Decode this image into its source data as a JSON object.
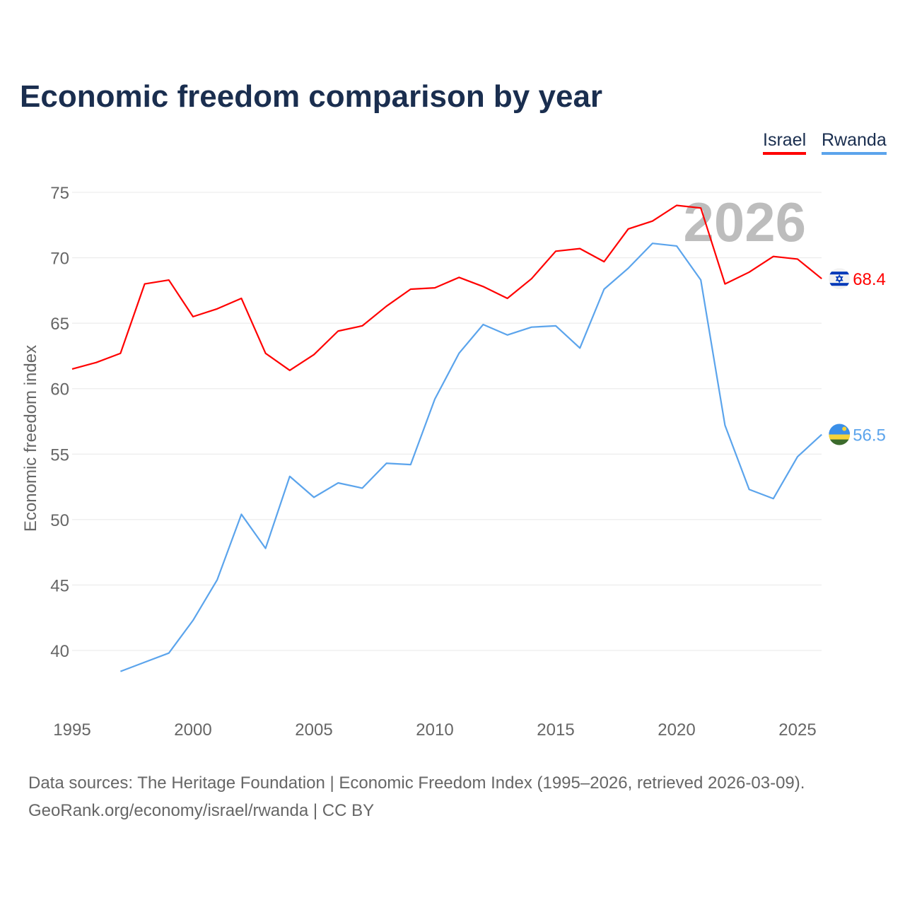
{
  "title": "Economic freedom comparison by year",
  "legend": [
    {
      "label": "Israel",
      "color": "#ff0000"
    },
    {
      "label": "Rwanda",
      "color": "#5ba4ec"
    }
  ],
  "source_line1": "Data sources: The Heritage Foundation | Economic Freedom Index (1995–2026, retrieved 2026-03-09).",
  "source_line2": "GeoRank.org/economy/israel/rwanda | CC BY",
  "chart_data": {
    "type": "line",
    "title": "Economic freedom comparison by year",
    "ylabel": "Economic freedom index",
    "xlabel": "",
    "xlim": [
      1995,
      2026
    ],
    "ylim": [
      35,
      75
    ],
    "yticks": [
      40,
      45,
      50,
      55,
      60,
      65,
      70,
      75
    ],
    "xticks": [
      1995,
      2000,
      2005,
      2010,
      2015,
      2020,
      2025
    ],
    "grid": true,
    "legend_position": "top-right",
    "year_watermark": "2026",
    "series": [
      {
        "name": "Israel",
        "color": "#ff0000",
        "end_label": "68.4",
        "flag": "israel-flag",
        "x": [
          1995,
          1996,
          1997,
          1998,
          1999,
          2000,
          2001,
          2002,
          2003,
          2004,
          2005,
          2006,
          2007,
          2008,
          2009,
          2010,
          2011,
          2012,
          2013,
          2014,
          2015,
          2016,
          2017,
          2018,
          2019,
          2020,
          2021,
          2022,
          2023,
          2024,
          2025,
          2026
        ],
        "values": [
          61.5,
          62.0,
          62.7,
          68.0,
          68.3,
          65.5,
          66.1,
          66.9,
          62.7,
          61.4,
          62.6,
          64.4,
          64.8,
          66.3,
          67.6,
          67.7,
          68.5,
          67.8,
          66.9,
          68.4,
          70.5,
          70.7,
          69.7,
          72.2,
          72.8,
          74.0,
          73.8,
          68.0,
          68.9,
          70.1,
          69.9,
          68.4
        ]
      },
      {
        "name": "Rwanda",
        "color": "#5ba4ec",
        "end_label": "56.5",
        "flag": "rwanda-flag",
        "x": [
          1997,
          1998,
          1999,
          2000,
          2001,
          2002,
          2003,
          2004,
          2005,
          2006,
          2007,
          2008,
          2009,
          2010,
          2011,
          2012,
          2013,
          2014,
          2015,
          2016,
          2017,
          2018,
          2019,
          2020,
          2021,
          2022,
          2023,
          2024,
          2025,
          2026
        ],
        "values": [
          38.4,
          39.1,
          39.8,
          42.3,
          45.4,
          50.4,
          47.8,
          53.3,
          51.7,
          52.8,
          52.4,
          54.3,
          54.2,
          59.2,
          62.7,
          64.9,
          64.1,
          64.7,
          64.8,
          63.1,
          67.6,
          69.2,
          71.1,
          70.9,
          68.3,
          57.2,
          52.3,
          51.6,
          54.8,
          56.5
        ]
      }
    ]
  }
}
